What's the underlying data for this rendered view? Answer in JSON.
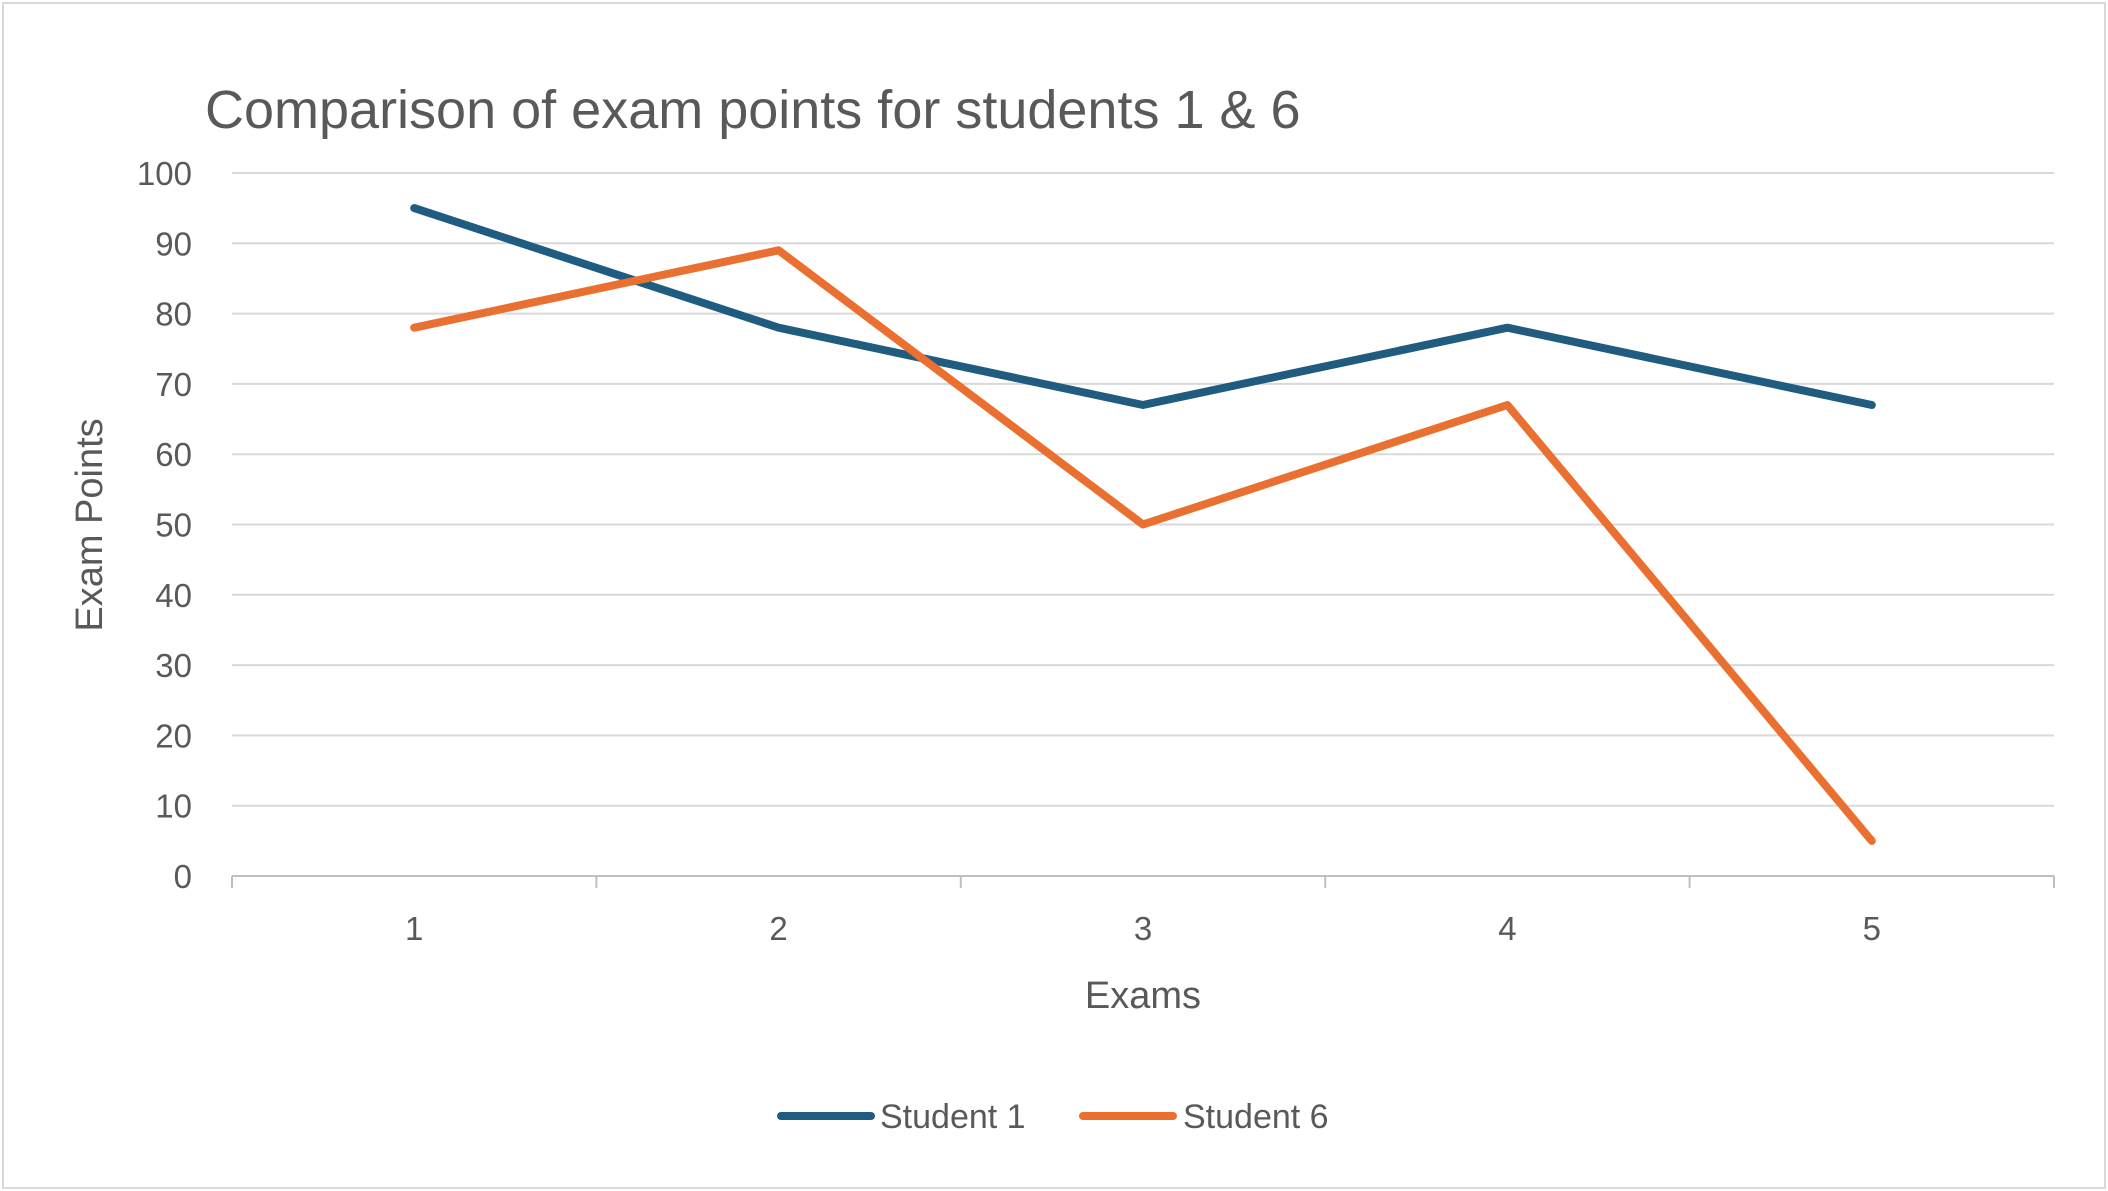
{
  "chart_data": {
    "type": "line",
    "title": "Comparison of exam points for students 1 & 6",
    "xlabel": "Exams",
    "ylabel": "Exam Points",
    "categories": [
      "1",
      "2",
      "3",
      "4",
      "5"
    ],
    "ylim": [
      0,
      100
    ],
    "yticks": [
      0,
      10,
      20,
      30,
      40,
      50,
      60,
      70,
      80,
      90,
      100
    ],
    "grid": true,
    "legend_position": "bottom",
    "series": [
      {
        "name": "Student 1",
        "values": [
          95,
          78,
          67,
          78,
          67
        ],
        "color": "#1f5c80"
      },
      {
        "name": "Student 6",
        "values": [
          78,
          89,
          50,
          67,
          5
        ],
        "color": "#ea7031"
      }
    ]
  }
}
